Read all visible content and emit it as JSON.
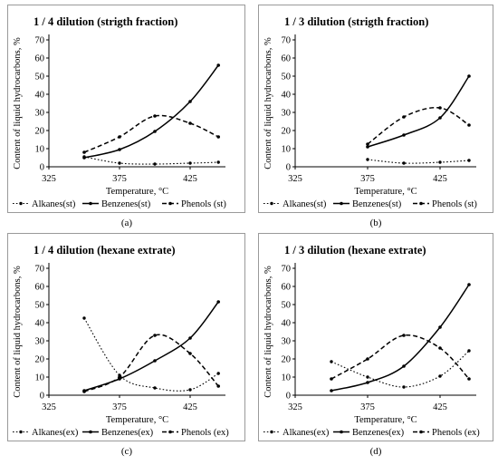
{
  "panel_labels": [
    "(a)",
    "(b)",
    "(c)",
    "(d)"
  ],
  "chart_data": [
    {
      "type": "line",
      "title": "1 / 4 dilution (strigth fraction)",
      "xlabel": "Temperature, °C",
      "ylabel": "Content of liquid hydrocarbons, %",
      "xlim": [
        325,
        450
      ],
      "ylim": [
        0,
        70
      ],
      "xticks": [
        325,
        375,
        425
      ],
      "yticks": [
        0,
        10,
        20,
        30,
        40,
        50,
        60,
        70
      ],
      "grid": false,
      "legend_position": "bottom",
      "series": [
        {
          "name": "Alkanes(st)",
          "style": "dotted",
          "x": [
            350,
            375,
            400,
            425,
            445
          ],
          "y": [
            5.5,
            2,
            1.5,
            2,
            2.5
          ]
        },
        {
          "name": "Benzenes(st)",
          "style": "solid",
          "x": [
            350,
            375,
            400,
            425,
            445
          ],
          "y": [
            5,
            9.5,
            19.5,
            36,
            56
          ]
        },
        {
          "name": "Phenols (st)",
          "style": "dashed",
          "x": [
            350,
            375,
            400,
            425,
            445
          ],
          "y": [
            8,
            16.5,
            28,
            24,
            16.5
          ]
        }
      ]
    },
    {
      "type": "line",
      "title": "1 / 3 dilution (strigth fraction)",
      "xlabel": "Temperature, °C",
      "ylabel": "Content of liquid hydrocarbons, %",
      "xlim": [
        325,
        450
      ],
      "ylim": [
        0,
        70
      ],
      "xticks": [
        325,
        375,
        425
      ],
      "yticks": [
        0,
        10,
        20,
        30,
        40,
        50,
        60,
        70
      ],
      "grid": false,
      "legend_position": "bottom",
      "series": [
        {
          "name": "Alkanes(st)",
          "style": "dotted",
          "x": [
            375,
            400,
            425,
            445
          ],
          "y": [
            4,
            2,
            2.5,
            3.5
          ]
        },
        {
          "name": "Benzenes(st)",
          "style": "solid",
          "x": [
            375,
            400,
            425,
            445
          ],
          "y": [
            11,
            17.5,
            27,
            50
          ]
        },
        {
          "name": "Phenols (st)",
          "style": "dashed",
          "x": [
            375,
            400,
            425,
            445
          ],
          "y": [
            12.5,
            27.5,
            32.5,
            23
          ]
        }
      ]
    },
    {
      "type": "line",
      "title": "1 / 4 dilution (hexane extrate)",
      "xlabel": "Temperature, °C",
      "ylabel": "Content of liquid hydrocarbons, %",
      "xlim": [
        325,
        450
      ],
      "ylim": [
        0,
        70
      ],
      "xticks": [
        325,
        375,
        425
      ],
      "yticks": [
        0,
        10,
        20,
        30,
        40,
        50,
        60,
        70
      ],
      "grid": false,
      "legend_position": "bottom",
      "series": [
        {
          "name": "Alkanes(ex)",
          "style": "dotted",
          "x": [
            350,
            375,
            400,
            425,
            445
          ],
          "y": [
            42.5,
            11,
            4,
            3,
            12
          ]
        },
        {
          "name": "Benzenes(ex)",
          "style": "solid",
          "x": [
            350,
            375,
            400,
            425,
            445
          ],
          "y": [
            2.5,
            9,
            19,
            31.5,
            51.5
          ]
        },
        {
          "name": "Phenols (ex)",
          "style": "dashed",
          "x": [
            350,
            375,
            400,
            425,
            445
          ],
          "y": [
            2,
            10,
            33,
            23,
            5
          ]
        }
      ]
    },
    {
      "type": "line",
      "title": "1 / 3 dilution (hexane extrate)",
      "xlabel": "Temperature, °C",
      "ylabel": "Content of liquid hydrocarbons, %",
      "xlim": [
        325,
        450
      ],
      "ylim": [
        0,
        70
      ],
      "xticks": [
        325,
        375,
        425
      ],
      "yticks": [
        0,
        10,
        20,
        30,
        40,
        50,
        60,
        70
      ],
      "grid": false,
      "legend_position": "bottom",
      "series": [
        {
          "name": "Alkanes(ex)",
          "style": "dotted",
          "x": [
            350,
            375,
            400,
            425,
            445
          ],
          "y": [
            18.5,
            10,
            4.5,
            10.5,
            24.5
          ]
        },
        {
          "name": "Benzenes(ex)",
          "style": "solid",
          "x": [
            350,
            375,
            400,
            425,
            445
          ],
          "y": [
            2.5,
            7,
            16,
            37.5,
            61
          ]
        },
        {
          "name": "Phenols (ex)",
          "style": "dashed",
          "x": [
            350,
            375,
            400,
            425,
            445
          ],
          "y": [
            9,
            20,
            33,
            26,
            9
          ]
        }
      ]
    }
  ]
}
